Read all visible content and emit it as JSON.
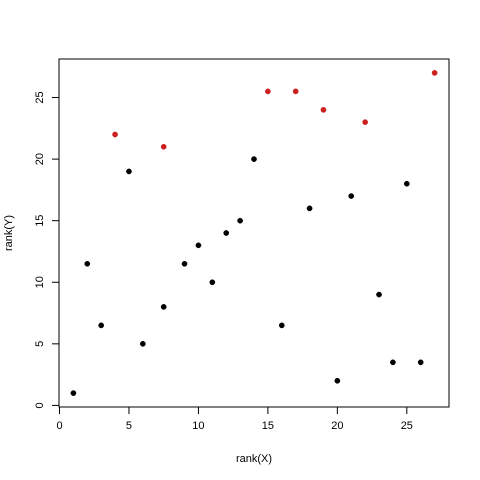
{
  "chart_data": {
    "type": "scatter",
    "title": "",
    "xlabel": "rank(X)",
    "ylabel": "rank(Y)",
    "xlim": [
      0,
      28
    ],
    "ylim": [
      0,
      28
    ],
    "x_ticks": [
      0,
      5,
      10,
      15,
      20,
      25
    ],
    "y_ticks": [
      0,
      5,
      10,
      15,
      20,
      25
    ],
    "x_tick_labels": [
      "0",
      "5",
      "10",
      "15",
      "20",
      "25"
    ],
    "y_tick_labels": [
      "0",
      "5",
      "10",
      "15",
      "20",
      "25"
    ],
    "grid": false,
    "legend": "none",
    "series": [
      {
        "color": "#000000",
        "points": [
          {
            "x": 1,
            "y": 1
          },
          {
            "x": 2,
            "y": 11.5
          },
          {
            "x": 3,
            "y": 6.5
          },
          {
            "x": 5,
            "y": 19
          },
          {
            "x": 6,
            "y": 5
          },
          {
            "x": 7.5,
            "y": 8
          },
          {
            "x": 9,
            "y": 11.5
          },
          {
            "x": 10,
            "y": 13
          },
          {
            "x": 11,
            "y": 10
          },
          {
            "x": 12,
            "y": 14
          },
          {
            "x": 13,
            "y": 15
          },
          {
            "x": 14,
            "y": 20
          },
          {
            "x": 16,
            "y": 6.5
          },
          {
            "x": 18,
            "y": 16
          },
          {
            "x": 20,
            "y": 2
          },
          {
            "x": 21,
            "y": 17
          },
          {
            "x": 23,
            "y": 9
          },
          {
            "x": 24,
            "y": 3.5
          },
          {
            "x": 25,
            "y": 18
          },
          {
            "x": 26,
            "y": 3.5
          }
        ]
      },
      {
        "color": "#cc1f1f",
        "points": [
          {
            "x": 4,
            "y": 22
          },
          {
            "x": 7.5,
            "y": 21
          },
          {
            "x": 15,
            "y": 25.5
          },
          {
            "x": 17,
            "y": 25.5
          },
          {
            "x": 19,
            "y": 24
          },
          {
            "x": 22,
            "y": 23
          },
          {
            "x": 27,
            "y": 27
          }
        ]
      }
    ]
  }
}
